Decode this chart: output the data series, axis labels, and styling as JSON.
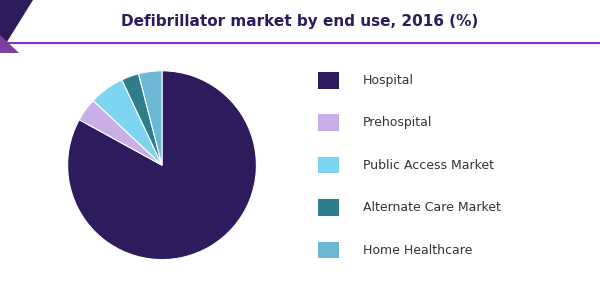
{
  "title": "Defibrillator market by end use, 2016 (%)",
  "title_color": "#2d1b5e",
  "title_fontsize": 11,
  "slices": [
    83,
    4,
    6,
    3,
    4
  ],
  "labels": [
    "Hospital",
    "Prehospital",
    "Public Access Market",
    "Alternate Care Market",
    "Home Healthcare"
  ],
  "colors": [
    "#2d1b5e",
    "#c9aee8",
    "#7dd4f0",
    "#2e7d8c",
    "#6bb8d4"
  ],
  "startangle": 90,
  "header_line_color": "#8b2fc9",
  "background_color": "#ffffff",
  "legend_fontsize": 9,
  "corner_color_1": "#2d1b5e",
  "corner_color_2": "#7b3fa0"
}
